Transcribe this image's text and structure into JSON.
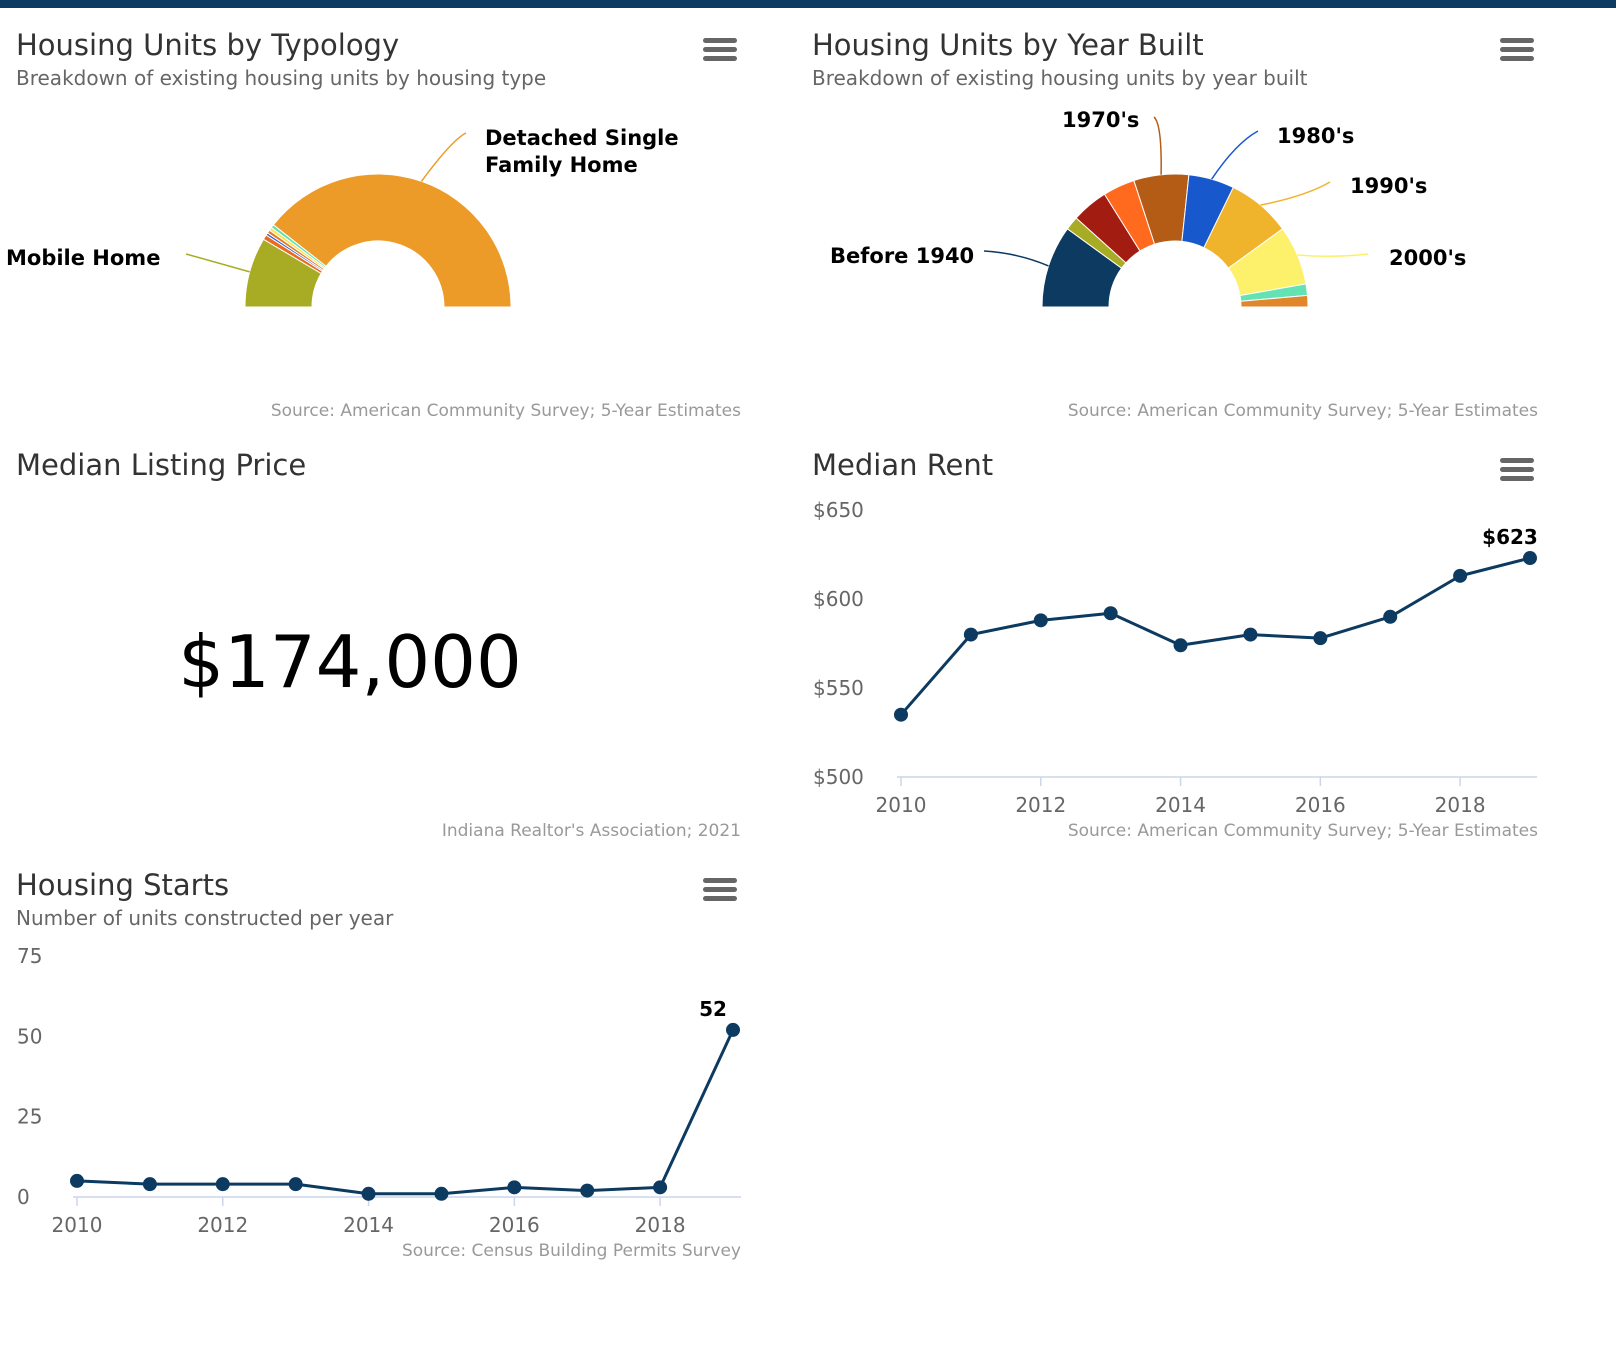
{
  "colors": {
    "topbar": "#0c3a60",
    "line": "#0c3a60",
    "axis": "#ccd6eb"
  },
  "typology": {
    "title": "Housing Units by Typology",
    "subtitle": "Breakdown of existing housing units by housing type",
    "source": "Source: American Community Survey; 5-Year Estimates",
    "menu_icon": "hamburger-menu-icon"
  },
  "year_built": {
    "title": "Housing Units by Year Built",
    "subtitle": "Breakdown of existing housing units by year built",
    "source": "Source: American Community Survey; 5-Year Estimates",
    "menu_icon": "hamburger-menu-icon"
  },
  "listing_price": {
    "title": "Median Listing Price",
    "value": "$174,000",
    "source": "Indiana Realtor's Association; 2021"
  },
  "median_rent": {
    "title": "Median Rent",
    "source": "Source: American Community Survey; 5-Year Estimates",
    "menu_icon": "hamburger-menu-icon"
  },
  "housing_starts": {
    "title": "Housing Starts",
    "subtitle": "Number of units constructed per year",
    "source": "Source: Census Building Permits Survey",
    "menu_icon": "hamburger-menu-icon"
  },
  "chart_data": [
    {
      "id": "typology",
      "type": "pie",
      "variant": "semi-donut",
      "slices": [
        {
          "label": "Mobile Home",
          "value": 17,
          "color": "#a8ac24"
        },
        {
          "label": "",
          "value": 1.2,
          "color": "#ea6b1f"
        },
        {
          "label": "",
          "value": 0.6,
          "color": "#2d63c9"
        },
        {
          "label": "",
          "value": 0.8,
          "color": "#e07a2b"
        },
        {
          "label": "",
          "value": 0.8,
          "color": "#ffe34a"
        },
        {
          "label": "",
          "value": 0.8,
          "color": "#5de0b6"
        },
        {
          "label": "Detached Single Family Home",
          "value": 78.8,
          "color": "#ec9a28"
        }
      ]
    },
    {
      "id": "year_built",
      "type": "pie",
      "variant": "semi-donut",
      "slices": [
        {
          "label": "Before 1940",
          "value": 18,
          "color": "#0c3a60"
        },
        {
          "label": "",
          "value": 3,
          "color": "#a8ac24"
        },
        {
          "label": "",
          "value": 8,
          "color": "#a31c12"
        },
        {
          "label": "",
          "value": 7,
          "color": "#ff6a1f"
        },
        {
          "label": "1970's",
          "value": 12,
          "color": "#b45c16"
        },
        {
          "label": "1980's",
          "value": 10,
          "color": "#1758cc"
        },
        {
          "label": "1990's",
          "value": 14,
          "color": "#f0b42c"
        },
        {
          "label": "2000's",
          "value": 13,
          "color": "#fdf06b"
        },
        {
          "label": "",
          "value": 2.5,
          "color": "#63e3b3"
        },
        {
          "label": "",
          "value": 2.5,
          "color": "#e0862b"
        }
      ]
    },
    {
      "id": "median_rent",
      "type": "line",
      "x": [
        2010,
        2011,
        2012,
        2013,
        2014,
        2015,
        2016,
        2017,
        2018,
        2019
      ],
      "values": [
        535,
        580,
        588,
        592,
        574,
        580,
        578,
        590,
        613,
        623
      ],
      "ylim": [
        500,
        650
      ],
      "yticks": [
        500,
        550,
        600,
        650
      ],
      "ytick_labels": [
        "$500",
        "$550",
        "$600",
        "$650"
      ],
      "xticks": [
        2010,
        2012,
        2014,
        2016,
        2018
      ],
      "last_label": "$623"
    },
    {
      "id": "housing_starts",
      "type": "line",
      "x": [
        2010,
        2011,
        2012,
        2013,
        2014,
        2015,
        2016,
        2017,
        2018,
        2019
      ],
      "values": [
        5,
        4,
        4,
        4,
        1,
        1,
        3,
        2,
        3,
        52
      ],
      "ylim": [
        0,
        75
      ],
      "yticks": [
        0,
        25,
        50,
        75
      ],
      "ytick_labels": [
        "0",
        "25",
        "50",
        "75"
      ],
      "xticks": [
        2010,
        2012,
        2014,
        2016,
        2018
      ],
      "last_label": "52"
    }
  ]
}
